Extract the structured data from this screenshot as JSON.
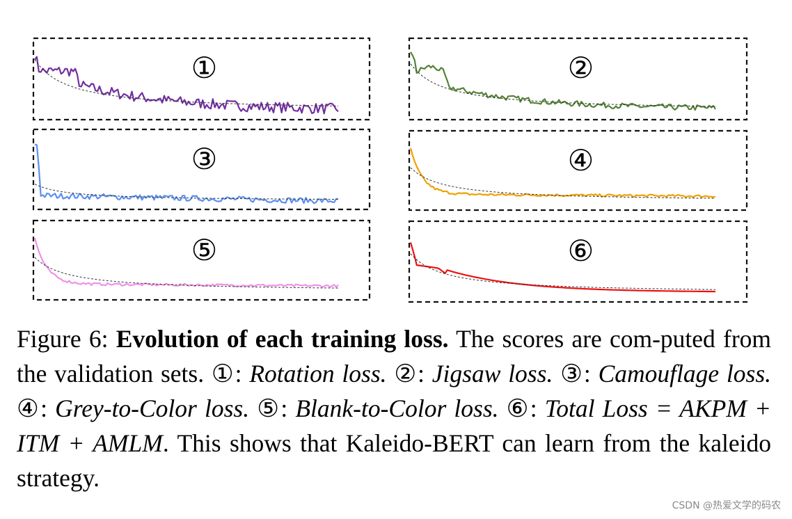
{
  "chart_data": [
    {
      "type": "line",
      "panel_label": "①",
      "series": [
        {
          "name": "Rotation loss",
          "color": "#7030a0"
        }
      ],
      "shape": "plateau_drop",
      "trend": "dashed",
      "noise": "high"
    },
    {
      "type": "line",
      "panel_label": "②",
      "series": [
        {
          "name": "Jigsaw loss",
          "color": "#548235"
        }
      ],
      "shape": "bump_drop",
      "trend": "dashed",
      "noise": "medium"
    },
    {
      "type": "line",
      "panel_label": "③",
      "series": [
        {
          "name": "Camouflage loss",
          "color": "#5b8ff0"
        }
      ],
      "shape": "spike_flat",
      "trend": "dashed",
      "noise": "medium"
    },
    {
      "type": "line",
      "panel_label": "④",
      "series": [
        {
          "name": "Grey-to-Color loss",
          "color": "#f0a000"
        }
      ],
      "shape": "fast_decay",
      "trend": "dashed",
      "noise": "low"
    },
    {
      "type": "line",
      "panel_label": "⑤",
      "series": [
        {
          "name": "Blank-to-Color loss",
          "color": "#f090e8"
        }
      ],
      "shape": "fast_decay",
      "trend": "dashed",
      "noise": "low"
    },
    {
      "type": "line",
      "panel_label": "⑥",
      "series": [
        {
          "name": "Total Loss",
          "color": "#ee1111"
        }
      ],
      "shape": "shoulder_decay",
      "trend": "dashed",
      "noise": "none"
    }
  ],
  "caption": {
    "figure_label": "Figure 6:",
    "title": "Evolution of each training loss.",
    "text_1": "The scores are com-puted from the validation sets.",
    "m1": "①",
    "d1": "Rotation loss.",
    "m2": "②",
    "d2": "Jigsaw loss.",
    "m3": "③",
    "d3": "Camouflage loss.",
    "m4": "④",
    "d4": "Grey-to-Color loss.",
    "m5": "⑤",
    "d5": "Blank-to-Color loss.",
    "m6": "⑥",
    "d6": "Total Loss = AKPM + ITM + AMLM",
    "text_2": "This shows that Kaleido-BERT can learn from the kaleido strategy."
  },
  "watermark": "CSDN @热爱文学的码农"
}
